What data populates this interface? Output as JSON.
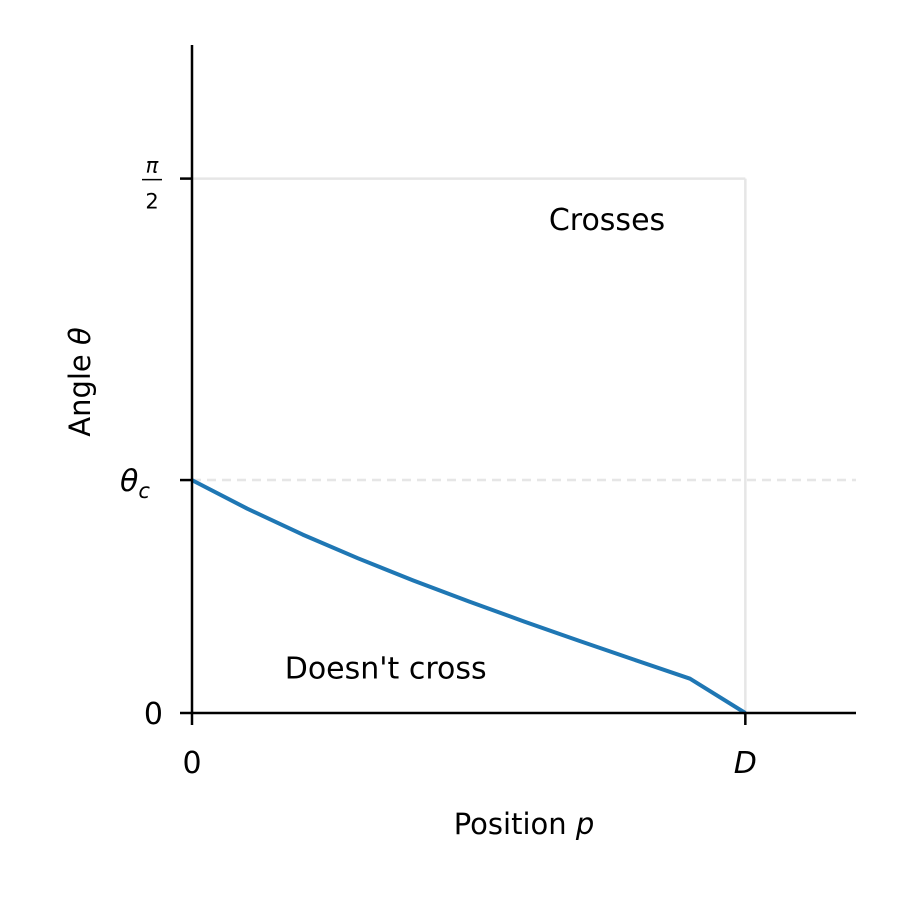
{
  "chart_data": {
    "type": "line",
    "title": "",
    "xlabel": {
      "text": "Position ",
      "symbol": "p"
    },
    "ylabel": {
      "text": "Angle ",
      "symbol": "θ"
    },
    "x_ticks": [
      {
        "value": 0,
        "label": "0",
        "italic": false
      },
      {
        "value": 1,
        "label": "D",
        "italic": true
      }
    ],
    "y_ticks": [
      {
        "value": 0,
        "label": "0",
        "kind": "plain"
      },
      {
        "value": 0.6847,
        "label": "θ",
        "sub": "c",
        "kind": "subscript"
      },
      {
        "value": 1.5708,
        "label": "π",
        "denominator": "2",
        "kind": "fraction"
      }
    ],
    "xlim": [
      0,
      1.2
    ],
    "ylim": [
      0,
      1.9635
    ],
    "series": [
      {
        "x": [
          0,
          0.1,
          0.2,
          0.3,
          0.4,
          0.5,
          0.6,
          0.7,
          0.8,
          0.9,
          1.0
        ],
        "y": [
          0.6847,
          0.6006,
          0.5245,
          0.4547,
          0.3895,
          0.3279,
          0.2689,
          0.2119,
          0.1561,
          0.1009,
          0.0
        ],
        "color": "#1f77b4"
      }
    ],
    "reference_lines": {
      "horizontal_dashed_at": 0.6847,
      "region_top": 1.5708,
      "region_right": 1.0,
      "color": "#e6e6e6"
    },
    "annotations": [
      {
        "text": "Crosses",
        "x": 0.75,
        "y": 1.4451
      },
      {
        "text": "Doesn't cross",
        "x": 0.35,
        "y": 0.1257
      }
    ],
    "grid": false,
    "spines": "left-bottom"
  }
}
